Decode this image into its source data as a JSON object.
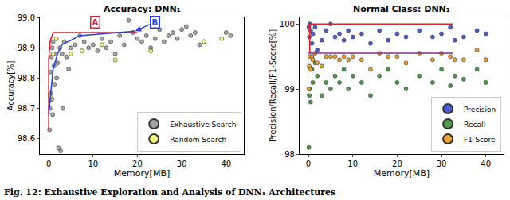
{
  "caption": "Fig. 12: Exhaustive Exploration and Analysis of DNN₁ Architectures",
  "chart_data": [
    {
      "type": "scatter",
      "title": "Accuracy: DNN₁",
      "x_label": "Memory[MB]",
      "y_label": "Accuracy[%]",
      "xlim": [
        -2,
        44
      ],
      "ylim": [
        98.55,
        99.0
      ],
      "xticks": [
        0,
        10,
        20,
        30,
        40
      ],
      "yticks": [
        98.6,
        98.7,
        98.8,
        98.9,
        {
          "value": 99,
          "label": "99.0"
        }
      ],
      "grid": false,
      "legend": "lower right",
      "series": [
        {
          "name": "Exhaustive Search",
          "color": "#a6a6a6",
          "marker": "circle",
          "x": [
            0.2,
            0.3,
            0.4,
            0.5,
            0.6,
            0.8,
            1,
            1.2,
            1.5,
            2,
            2.5,
            3,
            3.5,
            4,
            2.2,
            2.7,
            1.8,
            1.3,
            0.9,
            0.7,
            5,
            6,
            7,
            8,
            9,
            10,
            11,
            12,
            13,
            14,
            15,
            16,
            17,
            18,
            19,
            20,
            21,
            22,
            23,
            24,
            25,
            26,
            27,
            28,
            29,
            30,
            31,
            32,
            33,
            34,
            35,
            40,
            41,
            3.2,
            4.5
          ],
          "values": [
            98.63,
            98.7,
            98.75,
            98.82,
            98.87,
            98.9,
            98.92,
            98.84,
            98.88,
            98.85,
            98.9,
            98.88,
            98.92,
            98.87,
            98.57,
            98.56,
            98.8,
            98.78,
            98.68,
            98.73,
            98.9,
            98.91,
            98.94,
            98.92,
            98.9,
            98.91,
            98.89,
            98.93,
            98.9,
            98.92,
            98.88,
            98.94,
            98.91,
            98.99,
            98.95,
            98.93,
            98.92,
            98.94,
            98.9,
            98.93,
            98.96,
            98.92,
            98.94,
            98.95,
            98.93,
            98.96,
            98.97,
            98.94,
            98.95,
            98.91,
            98.92,
            98.95,
            98.94,
            98.7,
            98.83
          ]
        },
        {
          "name": "Random Search",
          "color": "#f2f27a",
          "marker": "circle",
          "x": [
            0.3,
            1,
            1.7,
            7.5,
            12,
            15,
            23,
            35,
            39,
            5
          ],
          "values": [
            98.74,
            98.88,
            98.93,
            98.89,
            98.91,
            98.86,
            98.89,
            98.92,
            98.93,
            98.88
          ]
        },
        {
          "type": "line",
          "color": "#e0202a",
          "line_style": "solid",
          "x": [
            0,
            0,
            0.3,
            1,
            20
          ],
          "values": [
            98.63,
            98.86,
            98.92,
            98.95,
            98.95
          ]
        },
        {
          "type": "line",
          "color": "#2a3fe0",
          "line_style": "solid",
          "x": [
            0,
            0.5,
            1,
            2,
            3,
            7,
            19.5
          ],
          "values": [
            98.68,
            98.75,
            98.83,
            98.88,
            98.91,
            98.94,
            98.955
          ]
        }
      ],
      "annotations": [
        {
          "text": "A",
          "color": "#e0202a",
          "x": 10.5,
          "y": 98.985
        },
        {
          "text": "B",
          "color": "#2a3fe0",
          "x": 24,
          "y": 98.985,
          "arrow_x": 19.5,
          "arrow_y": 98.955
        }
      ]
    },
    {
      "type": "scatter",
      "title": "Normal Class: DNN₁",
      "x_label": "Memory[MB]",
      "y_label": "Precision/Recall/F1-Score[%]",
      "xlim": [
        -2,
        44
      ],
      "ylim": [
        98,
        100.1
      ],
      "xticks": [
        0,
        10,
        20,
        30,
        40
      ],
      "yticks": [
        98,
        99,
        100
      ],
      "grid": false,
      "legend": "lower right",
      "series": [
        {
          "name": "Precision",
          "color": "#4a5fd0",
          "marker": "circle",
          "x": [
            0.1,
            0.2,
            0.3,
            0.5,
            0.8,
            1,
            1.5,
            2,
            3,
            4,
            5,
            6,
            7,
            8,
            9,
            10,
            12,
            14,
            16,
            18,
            20,
            22,
            25,
            28,
            30,
            32,
            33,
            35,
            38,
            40
          ],
          "values": [
            99.95,
            99.8,
            100,
            99.9,
            99.7,
            99.85,
            99.95,
            99.6,
            99.75,
            99.9,
            100,
            99.8,
            99.85,
            99.75,
            99.9,
            99.8,
            99.85,
            99.7,
            99.9,
            99.75,
            99.85,
            99.8,
            99.9,
            99.8,
            99.85,
            99.95,
            99.75,
            99.8,
            99.9,
            99.85
          ]
        },
        {
          "name": "Recall",
          "color": "#4f9a4f",
          "marker": "circle",
          "x": [
            0.1,
            0.2,
            0.3,
            0.5,
            0.8,
            1,
            1.5,
            2,
            3,
            4,
            5,
            6,
            7,
            8,
            9,
            10,
            12,
            14,
            16,
            18,
            20,
            22,
            25,
            28,
            30,
            32,
            33,
            35,
            38,
            40
          ],
          "values": [
            98.1,
            98.9,
            99.0,
            98.8,
            99.3,
            99.1,
            99.4,
            99.2,
            98.9,
            99.1,
            99.0,
            99.2,
            99.1,
            99.3,
            99.0,
            99.2,
            99.1,
            98.9,
            99.2,
            99.3,
            99.1,
            99.0,
            99.2,
            99.1,
            99.3,
            99.05,
            99.2,
            99.15,
            99.3,
            99.1
          ]
        },
        {
          "name": "F1-Score",
          "color": "#e8a23a",
          "marker": "circle",
          "x": [
            0.1,
            0.2,
            0.3,
            0.5,
            0.8,
            1,
            1.5,
            2,
            3,
            4,
            5,
            6,
            7,
            8,
            9,
            10,
            12,
            14,
            16,
            18,
            20,
            22,
            25,
            28,
            30,
            32,
            33,
            35,
            38,
            40
          ],
          "values": [
            99.0,
            99.35,
            99.5,
            99.3,
            99.5,
            99.45,
            99.55,
            99.4,
            99.35,
            99.5,
            99.5,
            99.5,
            99.45,
            99.5,
            99.45,
            99.5,
            99.45,
            99.3,
            99.55,
            99.5,
            99.5,
            99.4,
            99.55,
            99.45,
            99.55,
            99.5,
            99.45,
            99.45,
            99.6,
            99.45
          ]
        },
        {
          "type": "line",
          "color": "#e0202a",
          "line_style": "solid",
          "x": [
            0.3,
            0.3,
            32.5
          ],
          "values": [
            99.55,
            100,
            100
          ]
        },
        {
          "type": "line",
          "color": "#8e2a8e",
          "line_style": "solid",
          "x": [
            0,
            32.5
          ],
          "values": [
            99.55,
            99.55
          ]
        }
      ]
    }
  ]
}
